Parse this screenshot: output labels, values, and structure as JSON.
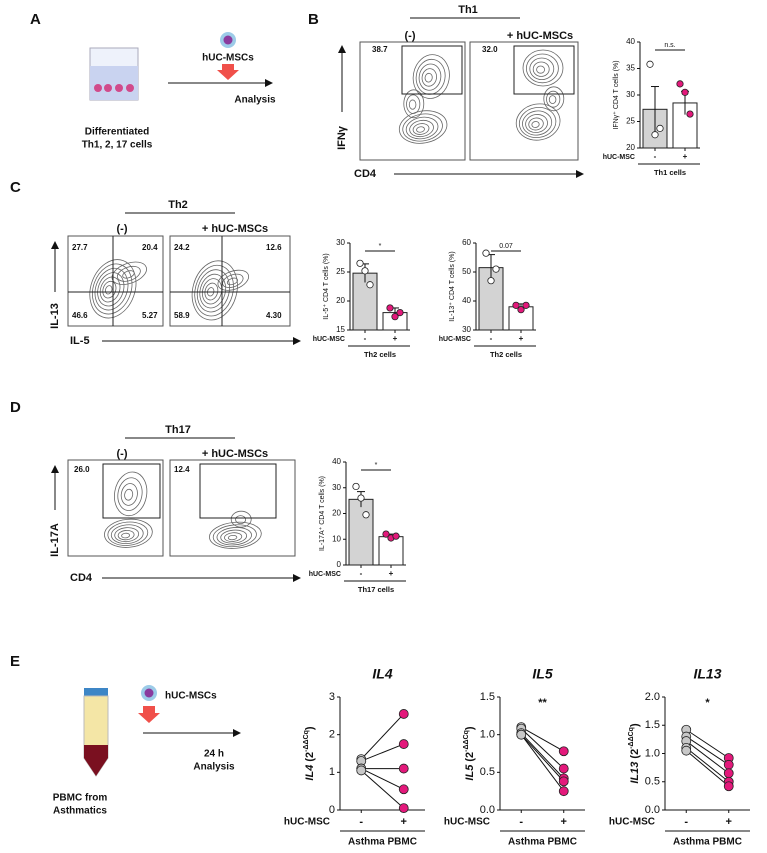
{
  "figure": {
    "panels": [
      "A",
      "B",
      "C",
      "D",
      "E"
    ],
    "schematic_a": {
      "agent": "hUC-MSCs",
      "cells_1": "Differentiated",
      "cells_2": "Th1, 2, 17 cells",
      "readout": "Analysis"
    },
    "flow_b": {
      "header": "Th1",
      "conditions": [
        "(-)",
        "+ hUC-MSCs"
      ],
      "gates": [
        "38.7",
        "32.0"
      ],
      "y_axis": "IFNγ",
      "x_axis": "CD4"
    },
    "flow_c": {
      "header": "Th2",
      "conditions": [
        "(-)",
        "+ hUC-MSCs"
      ],
      "quadrants": [
        [
          "27.7",
          "20.4",
          "46.6",
          "5.27"
        ],
        [
          "24.2",
          "12.6",
          "58.9",
          "4.30"
        ]
      ],
      "y_axis": "IL-13",
      "x_axis": "IL-5"
    },
    "flow_d": {
      "header": "Th17",
      "conditions": [
        "(-)",
        "+ hUC-MSCs"
      ],
      "gates": [
        "26.0",
        "12.4"
      ],
      "y_axis": "IL-17A",
      "x_axis": "CD4"
    },
    "schematic_e": {
      "agent": "hUC-MSCs",
      "time": "24 h",
      "readout": "Analysis",
      "source_1": "PBMC from",
      "source_2": "Asthmatics"
    }
  },
  "chart_data": [
    {
      "type": "bar",
      "ylabel": "IFNγ⁺ CD4  T cells (%)",
      "xlabel": "hUC-MSC",
      "group_label": "Th1 cells",
      "categories": [
        "-",
        "+"
      ],
      "values": [
        27.3,
        28.5
      ],
      "errors": [
        4.3,
        2.2
      ],
      "points": [
        [
          35.8,
          22.5,
          23.7
        ],
        [
          32.1,
          30.5,
          26.4
        ]
      ],
      "colors": [
        "#d3d3d3",
        "#ffffff"
      ],
      "point_colors": [
        "#ffffff",
        "#e3197b"
      ],
      "significance": "n.s.",
      "ylim": [
        20,
        40
      ],
      "yticks": [
        20,
        25,
        30,
        35,
        40
      ]
    },
    {
      "type": "bar",
      "ylabel": "IL-5⁺ CD4 T cells (%)",
      "xlabel": "hUC-MSC",
      "group_label": "Th2 cells",
      "categories": [
        "-",
        "+"
      ],
      "values": [
        24.8,
        18.0
      ],
      "errors": [
        1.6,
        0.8
      ],
      "points": [
        [
          26.5,
          25.2,
          22.8
        ],
        [
          18.8,
          17.3,
          18.0
        ]
      ],
      "colors": [
        "#d3d3d3",
        "#ffffff"
      ],
      "point_colors": [
        "#ffffff",
        "#e3197b"
      ],
      "significance": "*",
      "ylim": [
        15,
        30
      ],
      "yticks": [
        15,
        20,
        25,
        30
      ]
    },
    {
      "type": "bar",
      "ylabel": "IL-13⁺ CD4 T cells (%)",
      "xlabel": "hUC-MSC",
      "group_label": "Th2 cells",
      "categories": [
        "-",
        "+"
      ],
      "values": [
        51.5,
        38.0
      ],
      "errors": [
        4.5,
        1.0
      ],
      "points": [
        [
          56.5,
          47.0,
          51.0
        ],
        [
          38.5,
          37.0,
          38.5
        ]
      ],
      "colors": [
        "#d3d3d3",
        "#ffffff"
      ],
      "point_colors": [
        "#ffffff",
        "#e3197b"
      ],
      "significance": "0.07",
      "ylim": [
        30,
        60
      ],
      "yticks": [
        30,
        40,
        50,
        60
      ]
    },
    {
      "type": "bar",
      "ylabel": "IL-17A⁺ CD4  T cells (%)",
      "xlabel": "hUC-MSC",
      "group_label": "Th17 cells",
      "categories": [
        "-",
        "+"
      ],
      "values": [
        25.5,
        11.0
      ],
      "errors": [
        3.0,
        1.0
      ],
      "points": [
        [
          30.5,
          26.0,
          19.5
        ],
        [
          12.0,
          10.5,
          11.2
        ]
      ],
      "colors": [
        "#d3d3d3",
        "#ffffff"
      ],
      "point_colors": [
        "#ffffff",
        "#e3197b"
      ],
      "significance": "*",
      "ylim": [
        0,
        40
      ],
      "yticks": [
        0,
        10,
        20,
        30,
        40
      ]
    },
    {
      "type": "paired",
      "title": "IL4",
      "ylabel_gene": "IL4",
      "ylabel_base": " (2",
      "ylabel_sup": "-ΔΔCq",
      "ylabel_end": ")",
      "xlabel": "hUC-MSC",
      "group_label": "Asthma PBMC",
      "categories": [
        "-",
        "+"
      ],
      "pairs": [
        [
          1.35,
          2.55
        ],
        [
          1.3,
          1.75
        ],
        [
          1.1,
          1.1
        ],
        [
          1.1,
          0.55
        ],
        [
          1.05,
          0.05
        ]
      ],
      "colors": [
        "#c8c8c8",
        "#e3197b"
      ],
      "ylim": [
        0,
        3
      ],
      "yticks": [
        0,
        1,
        2,
        3
      ]
    },
    {
      "type": "paired",
      "title": "IL5",
      "ylabel_gene": "IL5",
      "ylabel_base": " (2",
      "ylabel_sup": "-ΔΔCq",
      "ylabel_end": ")",
      "xlabel": "hUC-MSC",
      "group_label": "Asthma PBMC",
      "categories": [
        "-",
        "+"
      ],
      "significance": "**",
      "pairs": [
        [
          1.1,
          0.78
        ],
        [
          1.08,
          0.55
        ],
        [
          1.02,
          0.42
        ],
        [
          1.0,
          0.38
        ],
        [
          1.0,
          0.25
        ]
      ],
      "colors": [
        "#c8c8c8",
        "#e3197b"
      ],
      "ylim": [
        0,
        1.5
      ],
      "yticks": [
        {
          "value": 0,
          "label": "0.0"
        },
        {
          "value": 0.5,
          "label": "0.5"
        },
        {
          "value": 1,
          "label": "1.0"
        },
        {
          "value": 1.5,
          "label": "1.5"
        }
      ]
    },
    {
      "type": "paired",
      "title": "IL13",
      "ylabel_gene": "IL13",
      "ylabel_base": " (2",
      "ylabel_sup": "-ΔΔCq",
      "ylabel_end": ")",
      "xlabel": "hUC-MSC",
      "group_label": "Asthma PBMC",
      "categories": [
        "-",
        "+"
      ],
      "significance": "*",
      "pairs": [
        [
          1.42,
          0.92
        ],
        [
          1.3,
          0.8
        ],
        [
          1.22,
          0.65
        ],
        [
          1.1,
          0.5
        ],
        [
          1.05,
          0.42
        ]
      ],
      "colors": [
        "#c8c8c8",
        "#e3197b"
      ],
      "ylim": [
        0,
        2
      ],
      "yticks": [
        {
          "value": 0,
          "label": "0.0"
        },
        {
          "value": 0.5,
          "label": "0.5"
        },
        {
          "value": 1,
          "label": "1.0"
        },
        {
          "value": 1.5,
          "label": "1.5"
        },
        {
          "value": 2,
          "label": "2.0"
        }
      ]
    }
  ]
}
